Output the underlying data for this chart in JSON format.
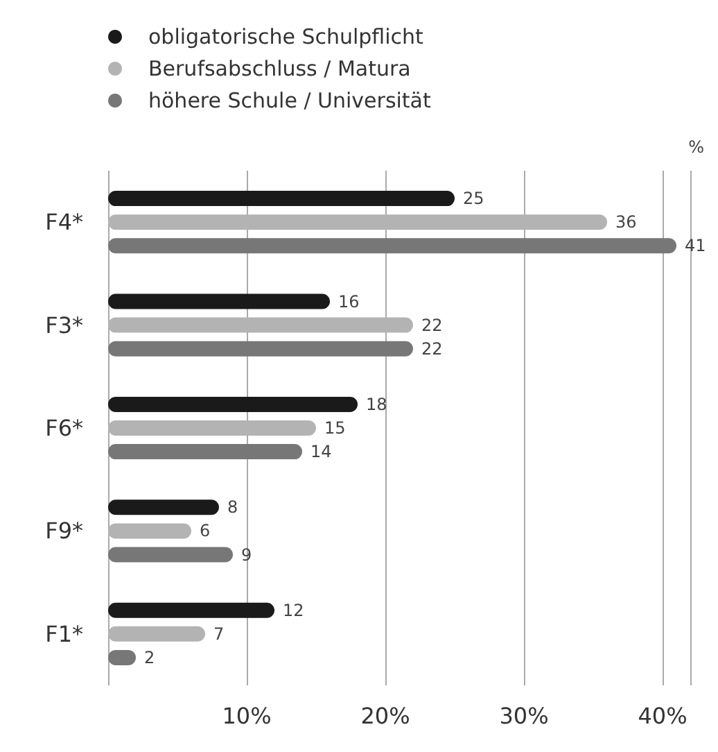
{
  "chart_data": {
    "type": "bar",
    "orientation": "horizontal",
    "categories": [
      "F4*",
      "F3*",
      "F6*",
      "F9*",
      "F1*"
    ],
    "series": [
      {
        "name": "obligatorische Schulpflicht",
        "color": "#1a1a1a",
        "values": [
          25,
          16,
          18,
          8,
          12
        ]
      },
      {
        "name": "Berufsabschluss / Matura",
        "color": "#b3b3b3",
        "values": [
          36,
          22,
          15,
          6,
          7
        ]
      },
      {
        "name": "höhere Schule / Universität",
        "color": "#777777",
        "values": [
          41,
          22,
          14,
          9,
          2
        ]
      }
    ],
    "xlim": [
      0,
      42
    ],
    "xticks": [
      {
        "value": 0,
        "label": null
      },
      {
        "value": 10,
        "label": "10%"
      },
      {
        "value": 20,
        "label": "20%"
      },
      {
        "value": 30,
        "label": "30%"
      },
      {
        "value": 40,
        "label": "40%"
      }
    ],
    "grid": "x",
    "legend": "top left",
    "data_labels": true,
    "annotations": [
      "%"
    ]
  }
}
